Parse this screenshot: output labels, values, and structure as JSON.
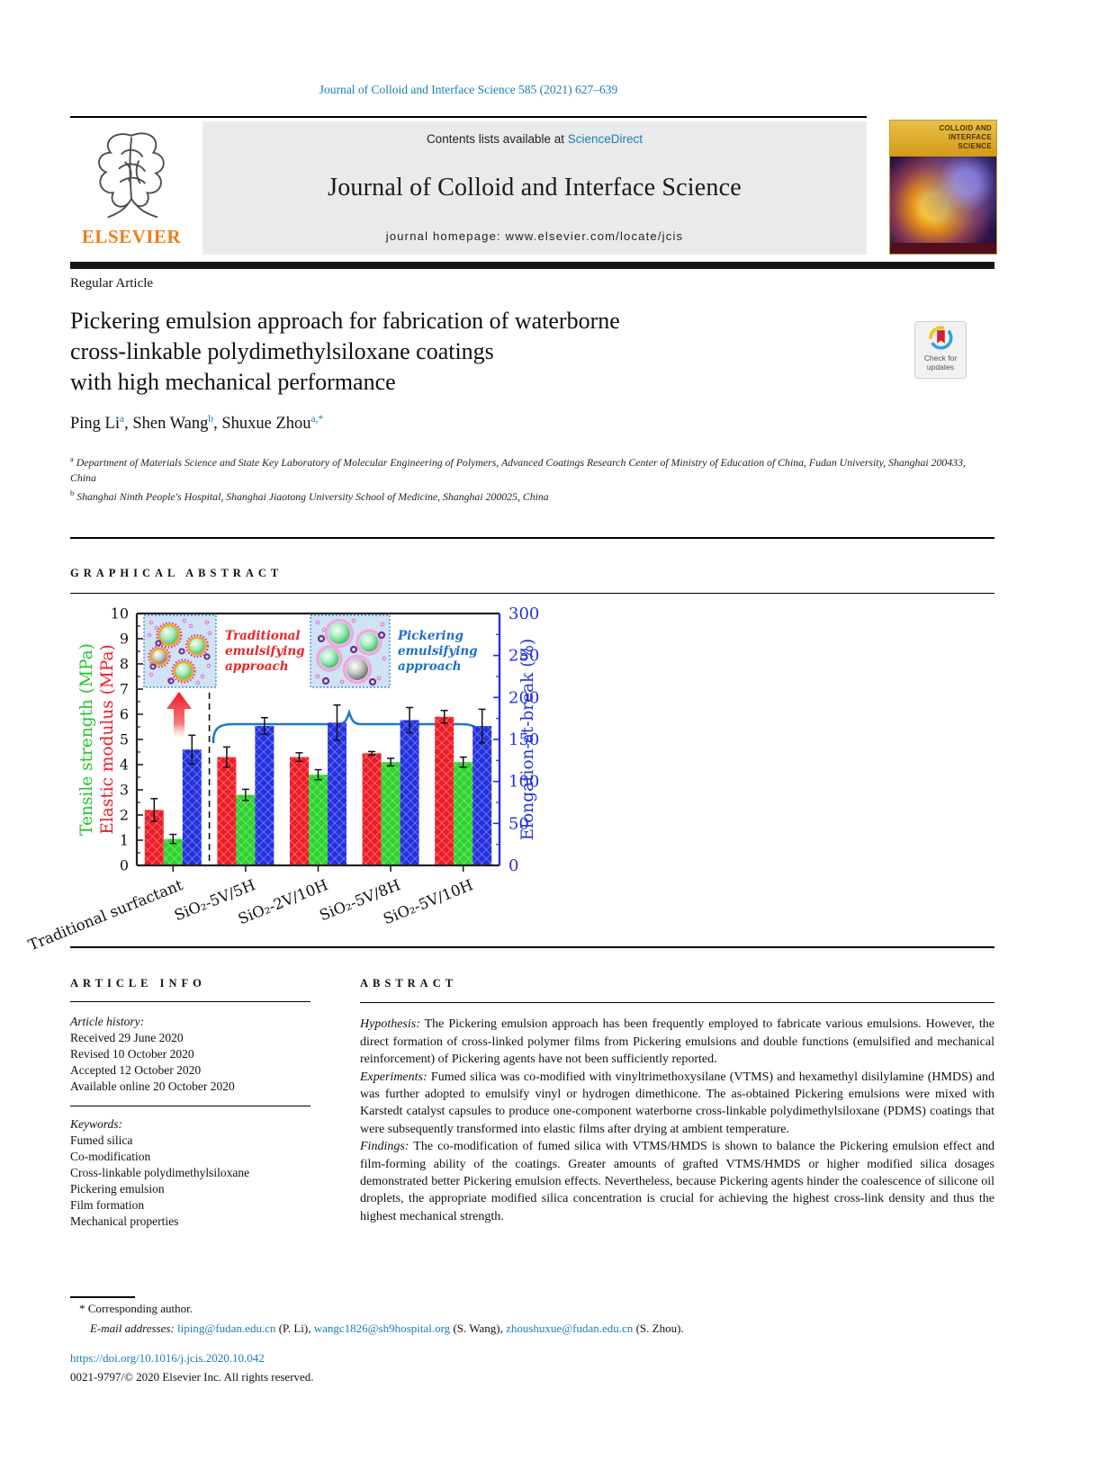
{
  "header": {
    "citation": "Journal of Colloid and Interface Science 585 (2021) 627–639",
    "contents_prefix": "Contents lists available at ",
    "sciencedirect": "ScienceDirect",
    "journal_title": "Journal of Colloid and Interface Science",
    "homepage_prefix": "journal homepage: ",
    "homepage_url": "www.elsevier.com/locate/jcis",
    "elsevier": "ELSEVIER"
  },
  "cover": {
    "title_lines": [
      "COLLOID AND",
      "INTERFACE",
      "SCIENCE"
    ]
  },
  "badge": {
    "line1": "Check for",
    "line2": "updates"
  },
  "article": {
    "type_label": "Regular Article",
    "title_lines": [
      "Pickering emulsion approach for fabrication of waterborne",
      "cross-linkable polydimethylsiloxane coatings",
      "with high mechanical performance"
    ],
    "authors": {
      "a1": {
        "name": "Ping Li",
        "sup": "a"
      },
      "sep1": ", ",
      "a2": {
        "name": "Shen Wang",
        "sup": "b"
      },
      "sep2": ", ",
      "a3": {
        "name": "Shuxue Zhou",
        "sup": "a,*"
      }
    },
    "affiliations": [
      {
        "sup": "a",
        "text": "Department of Materials Science and State Key Laboratory of Molecular Engineering of Polymers, Advanced Coatings Research Center of Ministry of Education of China, Fudan University, Shanghai 200433, China"
      },
      {
        "sup": "b",
        "text": "Shanghai Ninth People's Hospital, Shanghai Jiaotong University School of Medicine, Shanghai 200025, China"
      }
    ]
  },
  "graphical_abstract": {
    "heading": "GRAPHICAL ABSTRACT",
    "chart_data": {
      "type": "bar",
      "categories": [
        "Traditional surfactant",
        "SiO₂-5V/5H",
        "SiO₂-2V/10H",
        "SiO₂-5V/8H",
        "SiO₂-5V/10H"
      ],
      "series": [
        {
          "name": "Elastic modulus (MPa)",
          "axis": "left",
          "color": "#ee1c25",
          "values": [
            2.2,
            4.3,
            4.3,
            4.45,
            5.9
          ],
          "errors": [
            0.45,
            0.4,
            0.17,
            0.07,
            0.25
          ]
        },
        {
          "name": "Tensile strength (MPa)",
          "axis": "left",
          "color": "#2ed32e",
          "values": [
            1.05,
            2.8,
            3.6,
            4.1,
            4.1
          ],
          "errors": [
            0.18,
            0.22,
            0.2,
            0.15,
            0.2
          ]
        },
        {
          "name": "Elongation-at-break (%)",
          "axis": "right",
          "color": "#2431e0",
          "values": [
            138,
            166,
            170,
            173,
            166
          ],
          "errors": [
            17,
            10,
            21,
            15,
            20
          ]
        }
      ],
      "left_axis": {
        "labels": [
          "Tensile strength (MPa)",
          "Elastic modulus (MPa)"
        ],
        "colors": [
          "#22c52a",
          "#ee1c25"
        ],
        "min": 0,
        "max": 10,
        "tick_step": 1
      },
      "right_axis": {
        "label": "Elongation-at-break (%)",
        "color": "#2431e0",
        "min": 0,
        "max": 300,
        "tick_step": 50
      },
      "annotations": {
        "inset1_lines": [
          "Traditional",
          "emulsifying",
          "approach"
        ],
        "inset1_color": "#e8262a",
        "inset2_lines": [
          "Pickering",
          "emulsifying",
          "approach"
        ],
        "inset2_color": "#1f6fc4"
      },
      "grid": false,
      "legend_position": "none"
    }
  },
  "article_info": {
    "heading": "ARTICLE INFO",
    "history_label": "Article history:",
    "history": [
      "Received 29 June 2020",
      "Revised 10 October 2020",
      "Accepted 12 October 2020",
      "Available online 20 October 2020"
    ],
    "keywords_label": "Keywords:",
    "keywords": [
      "Fumed silica",
      "Co-modification",
      "Cross-linkable polydimethylsiloxane",
      "Pickering emulsion",
      "Film formation",
      "Mechanical properties"
    ]
  },
  "abstract": {
    "heading": "ABSTRACT",
    "paragraphs": [
      {
        "lead": "Hypothesis:",
        "text": " The Pickering emulsion approach has been frequently employed to fabricate various emulsions. However, the direct formation of cross-linked polymer films from Pickering emulsions and double functions (emulsified and mechanical reinforcement) of Pickering agents have not been sufficiently reported."
      },
      {
        "lead": "Experiments:",
        "text": " Fumed silica was co-modified with vinyltrimethoxysilane (VTMS) and hexamethyl disilylamine (HMDS) and was further adopted to emulsify vinyl or hydrogen dimethicone. The as-obtained Pickering emulsions were mixed with Karstedt catalyst capsules to produce one-component waterborne cross-linkable polydimethylsiloxane (PDMS) coatings that were subsequently transformed into elastic films after drying at ambient temperature."
      },
      {
        "lead": "Findings:",
        "text": " The co-modification of fumed silica with VTMS/HMDS is shown to balance the Pickering emulsion effect and film-forming ability of the coatings. Greater amounts of grafted VTMS/HMDS or higher modified silica dosages demonstrated better Pickering emulsion effects. Nevertheless, because Pickering agents hinder the coalescence of silicone oil droplets, the appropriate modified silica concentration is crucial for achieving the highest cross-link density and thus the highest mechanical strength."
      }
    ]
  },
  "footnote": {
    "marker": "*",
    "corresponding": "Corresponding author.",
    "email_label": "E-mail addresses:",
    "e1": "liping@fudan.edu.cn",
    "n1": " (P. Li), ",
    "e2": "wangc1826@sh9hospital.org",
    "n2": " (S. Wang), ",
    "e3": "zhoushuxue@fudan.edu.cn",
    "n3": " (S. Zhou)."
  },
  "footer": {
    "doi": "https://doi.org/10.1016/j.jcis.2020.10.042",
    "rights": "0021-9797/© 2020 Elsevier Inc. All rights reserved."
  }
}
